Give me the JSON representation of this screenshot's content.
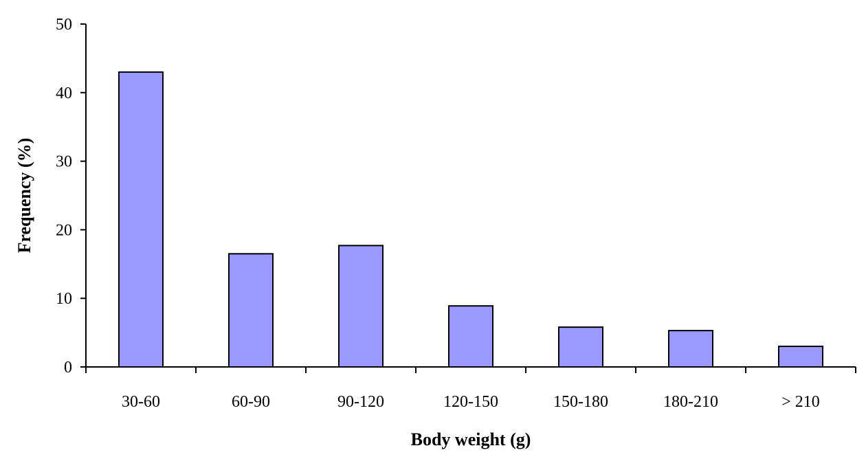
{
  "chart_data": {
    "type": "bar",
    "categories": [
      "30-60",
      "60-90",
      "90-120",
      "120-150",
      "150-180",
      "180-210",
      "> 210"
    ],
    "values": [
      43,
      16.5,
      17.7,
      8.9,
      5.8,
      5.3,
      3.0
    ],
    "xlabel": "Body weight (g)",
    "ylabel": "Frequency (%)",
    "ylim": [
      0,
      50
    ],
    "yticks": [
      0,
      10,
      20,
      30,
      40,
      50
    ],
    "bar_color": "#9999ff",
    "grid": false,
    "legend": "none"
  }
}
